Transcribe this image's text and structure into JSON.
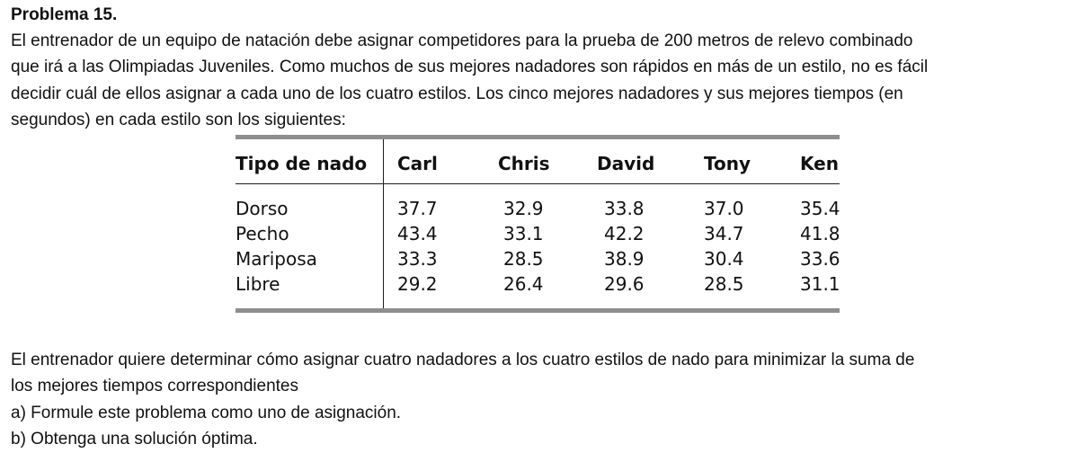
{
  "problem": {
    "title": "Problema 15.",
    "intro_lines": [
      "El entrenador de un equipo de natación debe asignar competidores para la prueba de 200 metros de relevo combinado",
      "que irá a las Olimpiadas Juveniles. Como muchos de sus mejores nadadores son rápidos en más de un estilo, no es fácil",
      "decidir cuál de ellos asignar a cada uno de los cuatro estilos. Los cinco mejores nadadores y sus mejores tiempos (en",
      "segundos) en cada estilo son los siguientes:"
    ],
    "outro_lines": [
      "El entrenador quiere determinar cómo asignar cuatro nadadores a los cuatro estilos de nado para minimizar la suma de",
      "los mejores tiempos correspondientes",
      "a) Formule este problema como uno de asignación.",
      "b) Obtenga una solución óptima."
    ]
  },
  "table": {
    "corner_header": "Tipo de nado",
    "columns": [
      "Carl",
      "Chris",
      "David",
      "Tony",
      "Ken"
    ],
    "rows": [
      {
        "label": "Dorso",
        "values": [
          "37.7",
          "32.9",
          "33.8",
          "37.0",
          "35.4"
        ]
      },
      {
        "label": "Pecho",
        "values": [
          "43.4",
          "33.1",
          "42.2",
          "34.7",
          "41.8"
        ]
      },
      {
        "label": "Mariposa",
        "values": [
          "33.3",
          "28.5",
          "38.9",
          "30.4",
          "33.6"
        ]
      },
      {
        "label": "Libre",
        "values": [
          "29.2",
          "26.4",
          "29.6",
          "28.5",
          "31.1"
        ]
      }
    ]
  }
}
